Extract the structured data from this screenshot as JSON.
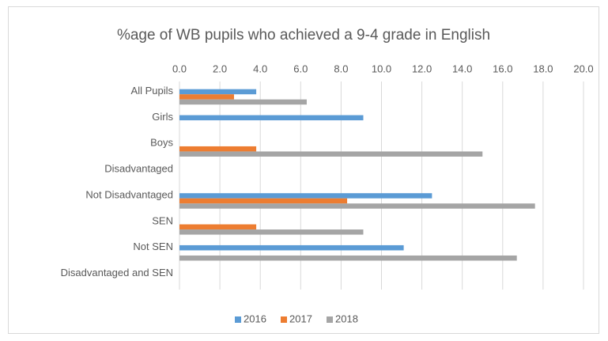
{
  "chart_data": {
    "type": "hbar",
    "title": "%age of WB pupils who achieved a 9-4 grade in English",
    "categories": [
      "All Pupils",
      "Girls",
      "Boys",
      "Disadvantaged",
      "Not Disadvantaged",
      "SEN",
      "Not SEN",
      "Disadvantaged and SEN"
    ],
    "series": [
      {
        "name": "2016",
        "color": "#5b9bd5",
        "values": [
          3.8,
          9.1,
          null,
          null,
          12.5,
          null,
          11.1,
          null
        ]
      },
      {
        "name": "2017",
        "color": "#ed7d31",
        "values": [
          2.7,
          null,
          3.8,
          null,
          8.3,
          3.8,
          null,
          null
        ]
      },
      {
        "name": "2018",
        "color": "#a5a5a5",
        "values": [
          6.3,
          null,
          15.0,
          null,
          17.6,
          9.1,
          16.7,
          null
        ]
      }
    ],
    "xlim": [
      0,
      20
    ],
    "xticks": [
      {
        "value": 0,
        "label": "0.0"
      },
      {
        "value": 2,
        "label": "2.0"
      },
      {
        "value": 4,
        "label": "4.0"
      },
      {
        "value": 6,
        "label": "6.0"
      },
      {
        "value": 8,
        "label": "8.0"
      },
      {
        "value": 10,
        "label": "10.0"
      },
      {
        "value": 12,
        "label": "12.0"
      },
      {
        "value": 14,
        "label": "14.0"
      },
      {
        "value": 16,
        "label": "16.0"
      },
      {
        "value": 18,
        "label": "18.0"
      },
      {
        "value": 20,
        "label": "20.0"
      }
    ],
    "grid": true,
    "legend": "bottom"
  }
}
